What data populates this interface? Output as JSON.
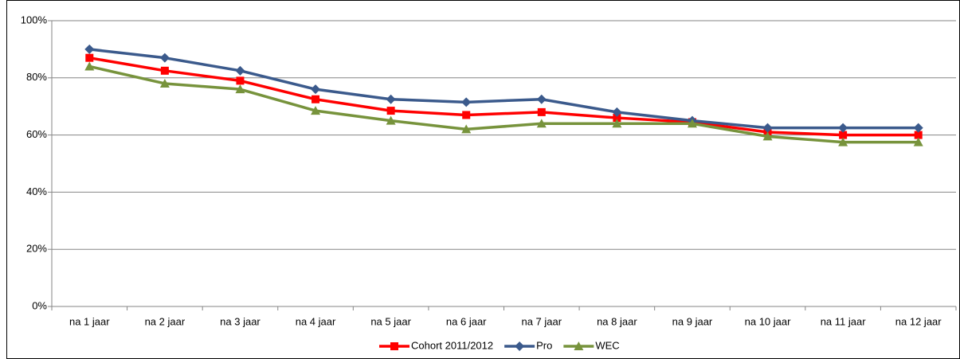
{
  "chart_data": {
    "type": "line",
    "categories": [
      "na 1 jaar",
      "na 2 jaar",
      "na 3 jaar",
      "na 4 jaar",
      "na 5 jaar",
      "na 6 jaar",
      "na 7 jaar",
      "na 8 jaar",
      "na 9 jaar",
      "na 10 jaar",
      "na 11 jaar",
      "na 12 jaar"
    ],
    "series": [
      {
        "name": "Cohort 2011/2012",
        "color": "#ff0000",
        "marker": "square",
        "values": [
          87,
          82.5,
          79,
          72.5,
          68.5,
          67,
          68,
          66,
          64.5,
          61,
          60,
          60
        ]
      },
      {
        "name": "Pro",
        "color": "#3b5a8c",
        "marker": "diamond",
        "values": [
          90,
          87,
          82.5,
          76,
          72.5,
          71.5,
          72.5,
          68,
          65,
          62.5,
          62.5,
          62.5
        ]
      },
      {
        "name": "WEC",
        "color": "#77933c",
        "marker": "triangle",
        "values": [
          84,
          78,
          76,
          68.5,
          65,
          62,
          64,
          64,
          64,
          59.5,
          57.5,
          57.5
        ]
      }
    ],
    "ylim": [
      0,
      100
    ],
    "yticks": [
      {
        "value": 0,
        "label": "0%"
      },
      {
        "value": 20,
        "label": "20%"
      },
      {
        "value": 40,
        "label": "40%"
      },
      {
        "value": 60,
        "label": "60%"
      },
      {
        "value": 80,
        "label": "80%"
      },
      {
        "value": 100,
        "label": "100%"
      }
    ],
    "grid": true,
    "legend": "bottom"
  }
}
